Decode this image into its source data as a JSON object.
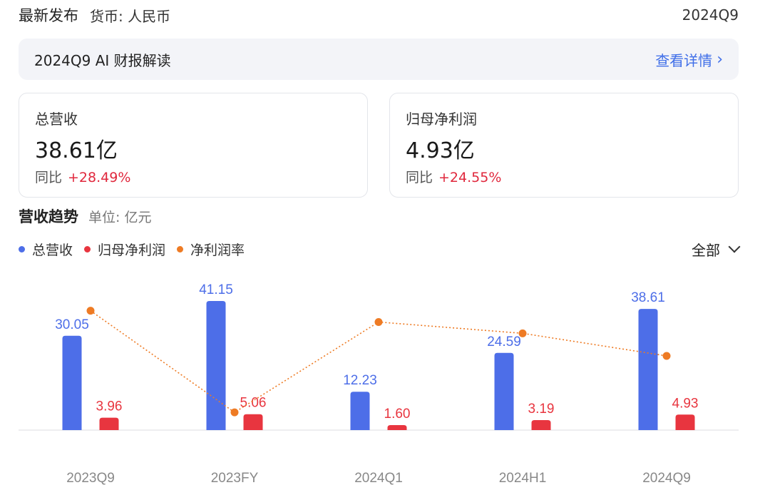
{
  "header": {
    "title": "最新发布",
    "currency": "货币: 人民币",
    "period": "2024Q9"
  },
  "ai_bar": {
    "title": "2024Q9 AI 财报解读",
    "link": "查看详情"
  },
  "cards": [
    {
      "label": "总营收",
      "value": "38.61亿",
      "yoy_label": "同比",
      "yoy_value": "+28.49%"
    },
    {
      "label": "归母净利润",
      "value": "4.93亿",
      "yoy_label": "同比",
      "yoy_value": "+24.55%"
    }
  ],
  "trend": {
    "title": "营收趋势",
    "unit": "单位: 亿元"
  },
  "filter": {
    "label": "全部"
  },
  "colors": {
    "revenue": "#4d6ee8",
    "profit": "#e8353f",
    "margin": "#ee7b24",
    "positive": "#e0283d",
    "link": "#3f6ee8"
  },
  "chart_data": {
    "type": "bar",
    "categories": [
      "2023Q9",
      "2023FY",
      "2024Q1",
      "2024H1",
      "2024Q9"
    ],
    "series": [
      {
        "name": "总营收",
        "type": "bar",
        "values": [
          30.05,
          41.15,
          12.23,
          24.59,
          38.61
        ],
        "labels": [
          "30.05",
          "41.15",
          "12.23",
          "24.59",
          "38.61"
        ]
      },
      {
        "name": "归母净利润",
        "type": "bar",
        "values": [
          3.96,
          5.06,
          1.6,
          3.19,
          4.93
        ],
        "labels": [
          "3.96",
          "5.06",
          "1.60",
          "3.19",
          "4.93"
        ]
      },
      {
        "name": "净利润率",
        "type": "line",
        "values": [
          13.2,
          12.3,
          13.1,
          13.0,
          12.8
        ]
      }
    ],
    "ylim": [
      0,
      45
    ],
    "y2lim": [
      12.2,
      13.4
    ],
    "legend": "top-left"
  }
}
